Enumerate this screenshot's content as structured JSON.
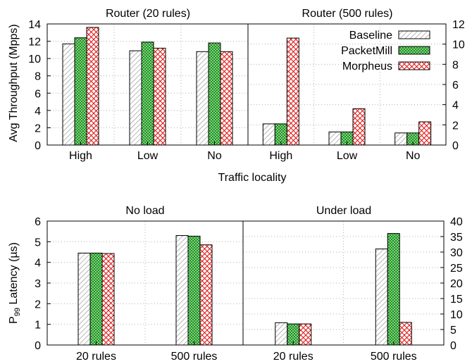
{
  "colors": {
    "baseline_fill": "#ffffff",
    "baseline_hatch": "#888888",
    "packetmill_fill": "#90ee90",
    "packetmill_hatch": "#1a7a1a",
    "morpheus_fill": "#ffffff",
    "morpheus_hatch": "#e01010"
  },
  "chart_data": [
    {
      "type": "bar",
      "title": "Router (20 rules)",
      "ylabel": "Avg Throughput (Mpps)",
      "xlabel": "Traffic locality",
      "categories": [
        "High",
        "Low",
        "No"
      ],
      "ylim": [
        0,
        14
      ],
      "yticks": [
        0,
        2,
        4,
        6,
        8,
        10,
        12,
        14
      ],
      "axis_side": "left",
      "grid": true,
      "series": [
        {
          "name": "Baseline",
          "values": [
            11.7,
            10.9,
            10.8
          ]
        },
        {
          "name": "PacketMill",
          "values": [
            12.4,
            11.9,
            11.8
          ]
        },
        {
          "name": "Morpheus",
          "values": [
            13.6,
            11.2,
            10.8
          ]
        }
      ]
    },
    {
      "type": "bar",
      "title": "Router (500 rules)",
      "categories": [
        "High",
        "Low",
        "No"
      ],
      "ylim": [
        0,
        12
      ],
      "yticks": [
        0,
        2,
        4,
        6,
        8,
        10,
        12
      ],
      "axis_side": "right",
      "grid": true,
      "legend": "top-right",
      "series": [
        {
          "name": "Baseline",
          "values": [
            2.1,
            1.3,
            1.2
          ]
        },
        {
          "name": "PacketMill",
          "values": [
            2.1,
            1.3,
            1.2
          ]
        },
        {
          "name": "Morpheus",
          "values": [
            10.6,
            3.6,
            2.3
          ]
        }
      ]
    },
    {
      "type": "bar",
      "title": "No load",
      "ylabel": "P99 Latency (µs)",
      "categories": [
        "20 rules",
        "500 rules"
      ],
      "ylim": [
        0,
        6
      ],
      "yticks": [
        0,
        1,
        2,
        3,
        4,
        5,
        6
      ],
      "axis_side": "left",
      "grid": true,
      "series": [
        {
          "name": "Baseline",
          "values": [
            4.45,
            5.3
          ]
        },
        {
          "name": "PacketMill",
          "values": [
            4.45,
            5.27
          ]
        },
        {
          "name": "Morpheus",
          "values": [
            4.43,
            4.85
          ]
        }
      ]
    },
    {
      "type": "bar",
      "title": "Under load",
      "categories": [
        "20 rules",
        "500 rules"
      ],
      "ylim": [
        0,
        40
      ],
      "yticks": [
        0,
        5,
        10,
        15,
        20,
        25,
        30,
        35,
        40
      ],
      "axis_side": "right",
      "grid": true,
      "series": [
        {
          "name": "Baseline",
          "values": [
            7.2,
            31.0
          ]
        },
        {
          "name": "PacketMill",
          "values": [
            6.8,
            36.0
          ]
        },
        {
          "name": "Morpheus",
          "values": [
            6.8,
            7.3
          ]
        }
      ]
    }
  ]
}
